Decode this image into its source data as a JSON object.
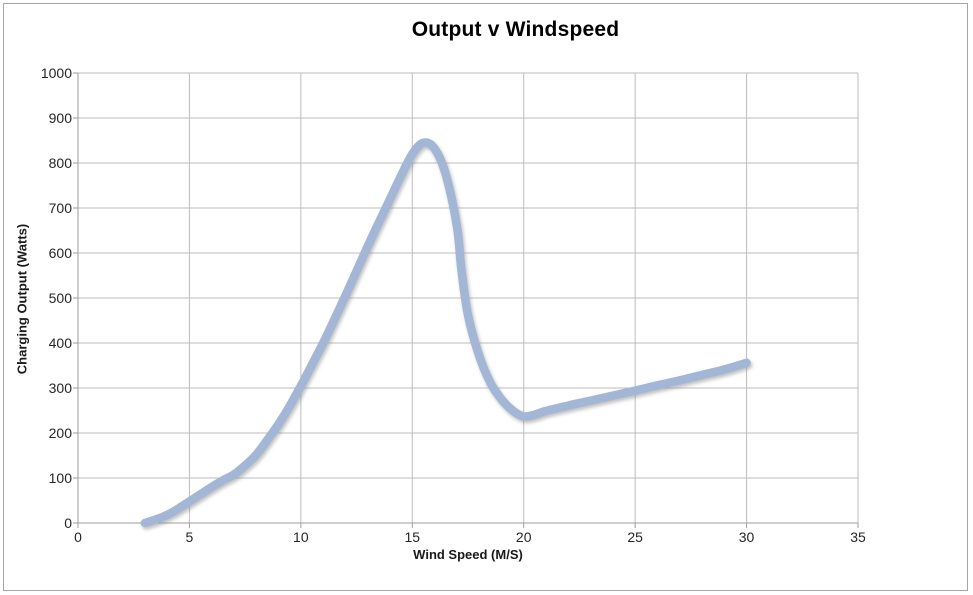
{
  "chart_data": {
    "type": "line",
    "title": "Output v Windspeed",
    "xlabel": "Wind Speed (M/S)",
    "ylabel": "Charging Output (Watts)",
    "xlim": [
      0,
      35
    ],
    "ylim": [
      0,
      1000
    ],
    "x_ticks": [
      0,
      5,
      10,
      15,
      20,
      25,
      30,
      35
    ],
    "y_ticks": [
      0,
      100,
      200,
      300,
      400,
      500,
      600,
      700,
      800,
      900,
      1000
    ],
    "grid": true,
    "legend": false,
    "series": [
      {
        "name": "Charging Output",
        "points": [
          [
            3,
            0
          ],
          [
            3.5,
            8
          ],
          [
            4,
            18
          ],
          [
            4.5,
            32
          ],
          [
            5,
            48
          ],
          [
            5.5,
            64
          ],
          [
            6,
            80
          ],
          [
            6.5,
            95
          ],
          [
            7,
            108
          ],
          [
            7.5,
            128
          ],
          [
            8,
            152
          ],
          [
            8.5,
            185
          ],
          [
            9,
            220
          ],
          [
            9.5,
            260
          ],
          [
            10,
            305
          ],
          [
            10.5,
            352
          ],
          [
            11,
            400
          ],
          [
            11.5,
            452
          ],
          [
            12,
            505
          ],
          [
            12.5,
            560
          ],
          [
            13,
            615
          ],
          [
            13.5,
            668
          ],
          [
            14,
            720
          ],
          [
            14.5,
            772
          ],
          [
            15,
            820
          ],
          [
            15.5,
            845
          ],
          [
            16,
            832
          ],
          [
            16.5,
            775
          ],
          [
            17,
            660
          ],
          [
            17.2,
            565
          ],
          [
            17.5,
            462
          ],
          [
            18,
            372
          ],
          [
            18.5,
            312
          ],
          [
            19,
            275
          ],
          [
            19.5,
            250
          ],
          [
            20,
            237
          ],
          [
            20.5,
            241
          ],
          [
            21,
            249
          ],
          [
            22,
            261
          ],
          [
            23,
            272
          ],
          [
            24,
            283
          ],
          [
            25,
            294
          ],
          [
            26,
            306
          ],
          [
            27,
            317
          ],
          [
            28,
            329
          ],
          [
            29,
            341
          ],
          [
            30,
            356
          ]
        ]
      }
    ]
  },
  "colors": {
    "series_line": "#a3b6d6",
    "line_shadow": "#8f8f8f",
    "gridline": "#bdbdbd",
    "axis_line": "#9e9e9e",
    "tick_text": "#262626",
    "title_text": "#000000",
    "border": "#a6a6a6",
    "background": "#ffffff"
  }
}
